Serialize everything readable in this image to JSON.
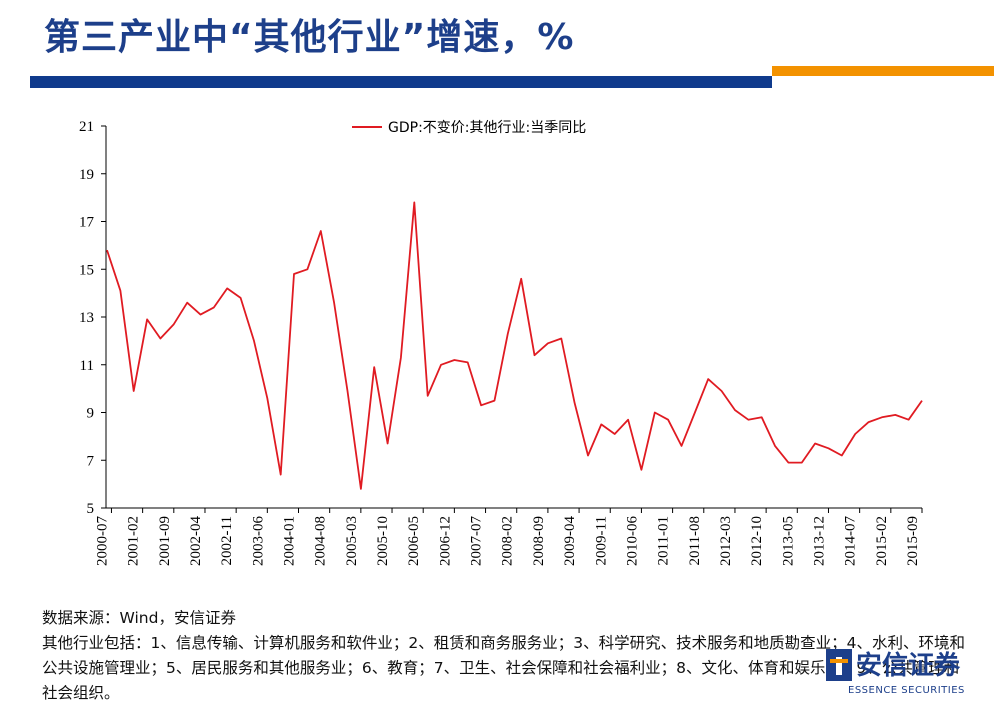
{
  "page": {
    "title": "第三产业中“其他行业”增速，%",
    "colors": {
      "title": "#1d3f8a",
      "blue_bar": "#0f3a8c",
      "orange_bar": "#f39200",
      "series": "#e01b22"
    }
  },
  "chart_data": {
    "type": "line",
    "title": "",
    "xlabel": "",
    "ylabel": "",
    "ylim": [
      5,
      21
    ],
    "yticks": [
      5,
      7,
      9,
      11,
      13,
      15,
      17,
      19,
      21
    ],
    "x_tick_labels": [
      "2000-07",
      "2001-02",
      "2001-09",
      "2002-04",
      "2002-11",
      "2003-06",
      "2004-01",
      "2004-08",
      "2005-03",
      "2005-10",
      "2006-05",
      "2006-12",
      "2007-07",
      "2008-02",
      "2008-09",
      "2009-04",
      "2009-11",
      "2010-06",
      "2011-01",
      "2011-08",
      "2012-03",
      "2012-10",
      "2013-05",
      "2013-12",
      "2014-07",
      "2015-02",
      "2015-09"
    ],
    "legend_position": "top-center",
    "grid": false,
    "series": [
      {
        "name": "GDP:不变价:其他行业:当季同比",
        "color": "#e01b22",
        "x": [
          "2000-06",
          "2000-09",
          "2000-12",
          "2001-03",
          "2001-06",
          "2001-09",
          "2001-12",
          "2002-03",
          "2002-06",
          "2002-09",
          "2002-12",
          "2003-03",
          "2003-06",
          "2003-09",
          "2003-12",
          "2004-03",
          "2004-06",
          "2004-09",
          "2004-12",
          "2005-03",
          "2005-06",
          "2005-09",
          "2005-12",
          "2006-03",
          "2006-06",
          "2006-09",
          "2006-12",
          "2007-03",
          "2007-06",
          "2007-09",
          "2007-12",
          "2008-03",
          "2008-06",
          "2008-09",
          "2008-12",
          "2009-03",
          "2009-06",
          "2009-09",
          "2009-12",
          "2010-03",
          "2010-06",
          "2010-09",
          "2010-12",
          "2011-03",
          "2011-06",
          "2011-09",
          "2011-12",
          "2012-03",
          "2012-06",
          "2012-09",
          "2012-12",
          "2013-03",
          "2013-06",
          "2013-09",
          "2013-12",
          "2014-03",
          "2014-06",
          "2014-09",
          "2014-12",
          "2015-03",
          "2015-06",
          "2015-09"
        ],
        "values": [
          15.8,
          14.1,
          9.9,
          12.9,
          12.1,
          12.7,
          13.6,
          13.1,
          13.4,
          14.2,
          13.8,
          12.0,
          9.6,
          6.4,
          14.8,
          15.0,
          16.6,
          13.6,
          9.9,
          5.8,
          10.9,
          7.7,
          11.3,
          17.8,
          9.7,
          11.0,
          11.2,
          11.1,
          9.3,
          9.5,
          12.3,
          14.6,
          11.4,
          11.9,
          12.1,
          9.4,
          7.2,
          8.5,
          8.1,
          8.7,
          6.6,
          9.0,
          8.7,
          7.6,
          9.0,
          10.4,
          9.9,
          9.1,
          8.7,
          8.8,
          7.6,
          6.9,
          6.9,
          7.7,
          7.5,
          7.2,
          8.1,
          8.6,
          8.8,
          8.9,
          8.7,
          9.5
        ]
      }
    ]
  },
  "notes": {
    "source": "数据来源：Wind，安信证券",
    "definition": "其他行业包括：1、信息传输、计算机服务和软件业；2、租赁和商务服务业；3、科学研究、技术服务和地质勘查业；4、水利、环境和公共设施管理业；5、居民服务和其他服务业；6、教育；7、卫生、社会保障和社会福利业；8、文化、体育和娱乐业；9、公共管理和社会组织。"
  },
  "logo": {
    "name": "安信证券",
    "subtitle": "ESSENCE SECURITIES"
  }
}
